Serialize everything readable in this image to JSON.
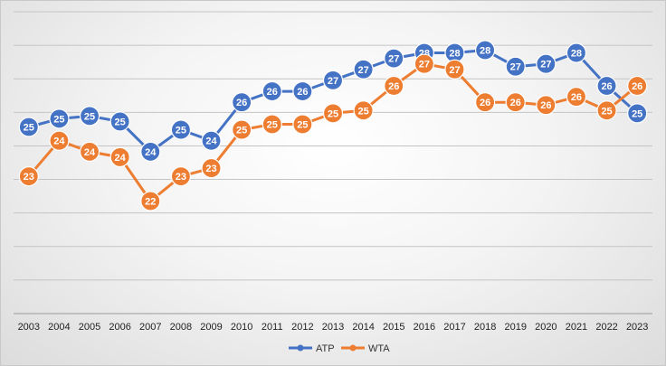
{
  "chart_data": {
    "type": "line",
    "title": "",
    "xlabel": "",
    "ylabel": "",
    "ylim": [
      18,
      29
    ],
    "grid": true,
    "legend_position": "bottom",
    "x": [
      "2003",
      "2004",
      "2005",
      "2006",
      "2007",
      "2008",
      "2009",
      "2010",
      "2011",
      "2012",
      "2013",
      "2014",
      "2015",
      "2016",
      "2017",
      "2018",
      "2019",
      "2020",
      "2021",
      "2022",
      "2023"
    ],
    "series": [
      {
        "name": "ATP",
        "color": "#4472C4",
        "values": [
          24.8,
          25.1,
          25.2,
          25.0,
          23.9,
          24.7,
          24.3,
          25.7,
          26.1,
          26.1,
          26.5,
          26.9,
          27.3,
          27.5,
          27.5,
          27.6,
          27.0,
          27.1,
          27.5,
          26.3,
          25.3
        ]
      },
      {
        "name": "WTA",
        "color": "#ED7D31",
        "values": [
          23.0,
          24.3,
          23.9,
          23.7,
          22.1,
          23.0,
          23.3,
          24.7,
          24.9,
          24.9,
          25.3,
          25.4,
          26.3,
          27.1,
          26.9,
          25.7,
          25.7,
          25.6,
          25.9,
          25.4,
          26.3
        ]
      }
    ]
  }
}
